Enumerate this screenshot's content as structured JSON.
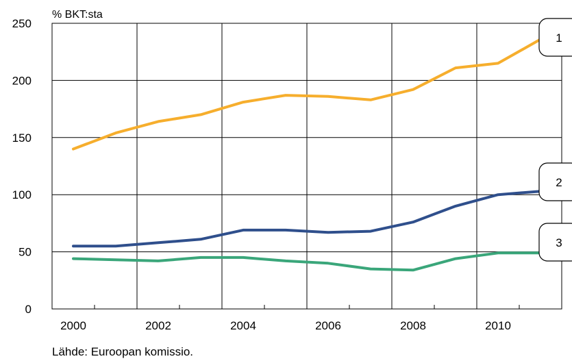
{
  "chart_data": {
    "type": "line",
    "ylabel": "% BKT:sta",
    "xlabel": "",
    "title": "",
    "x": [
      2000,
      2001,
      2002,
      2003,
      2004,
      2005,
      2006,
      2007,
      2008,
      2009,
      2010,
      2011
    ],
    "xticks": [
      "2000",
      "2002",
      "2004",
      "2006",
      "2008",
      "2010"
    ],
    "yticks": [
      "0",
      "50",
      "100",
      "150",
      "200",
      "250"
    ],
    "ylim": [
      0,
      250
    ],
    "grid": true,
    "legend": "none",
    "series": [
      {
        "callout": "1",
        "color": "#f6ae2d",
        "values": [
          140,
          154,
          164,
          170,
          181,
          187,
          186,
          183,
          192,
          211,
          215,
          236
        ]
      },
      {
        "callout": "2",
        "color": "#2f4f8c",
        "values": [
          55,
          55,
          58,
          61,
          69,
          69,
          67,
          68,
          76,
          90,
          100,
          103
        ]
      },
      {
        "callout": "3",
        "color": "#3aa67a",
        "values": [
          44,
          43,
          42,
          45,
          45,
          42,
          40,
          35,
          34,
          44,
          49,
          49
        ]
      }
    ]
  },
  "source": "Lähde: Euroopan komissio."
}
